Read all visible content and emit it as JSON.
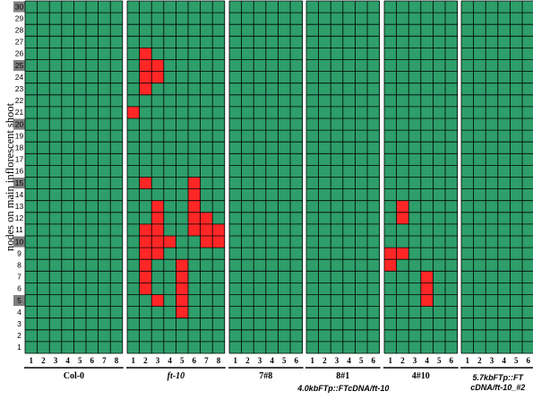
{
  "chart_data": {
    "type": "heatmap",
    "ylabel": "nodes on main inflorescent shoot",
    "rows": 30,
    "highlighted_rows": [
      5,
      10,
      15,
      20,
      25,
      30
    ],
    "colors": {
      "background": "#2e9e6a",
      "flower": "#ff2626",
      "grid": "#000000",
      "highlight": "#808080"
    },
    "panels": [
      {
        "label": "Col-0",
        "italic": false,
        "columns": [
          1,
          2,
          3,
          4,
          5,
          6,
          7,
          8
        ],
        "red": []
      },
      {
        "label": "ft-10",
        "italic": true,
        "columns": [
          1,
          2,
          3,
          4,
          5,
          6,
          7,
          8
        ],
        "red": [
          [
            1,
            21
          ],
          [
            2,
            26
          ],
          [
            2,
            25
          ],
          [
            2,
            24
          ],
          [
            2,
            23
          ],
          [
            2,
            15
          ],
          [
            2,
            11
          ],
          [
            2,
            10
          ],
          [
            2,
            9
          ],
          [
            2,
            8
          ],
          [
            2,
            7
          ],
          [
            2,
            6
          ],
          [
            3,
            25
          ],
          [
            3,
            24
          ],
          [
            3,
            13
          ],
          [
            3,
            12
          ],
          [
            3,
            11
          ],
          [
            3,
            10
          ],
          [
            3,
            9
          ],
          [
            3,
            5
          ],
          [
            4,
            10
          ],
          [
            5,
            8
          ],
          [
            5,
            7
          ],
          [
            5,
            6
          ],
          [
            5,
            5
          ],
          [
            5,
            4
          ],
          [
            6,
            15
          ],
          [
            6,
            14
          ],
          [
            6,
            13
          ],
          [
            6,
            12
          ],
          [
            6,
            11
          ],
          [
            7,
            12
          ],
          [
            7,
            11
          ],
          [
            7,
            10
          ],
          [
            8,
            11
          ],
          [
            8,
            10
          ]
        ]
      },
      {
        "label": "7#8",
        "italic": false,
        "columns": [
          1,
          2,
          3,
          4,
          5,
          6
        ],
        "red": []
      },
      {
        "label": "8#1",
        "italic": false,
        "columns": [
          1,
          2,
          3,
          4,
          5,
          6
        ],
        "red": []
      },
      {
        "label": "4#10",
        "italic": false,
        "columns": [
          1,
          2,
          3,
          4,
          5,
          6
        ],
        "red": [
          [
            1,
            9
          ],
          [
            1,
            8
          ],
          [
            2,
            13
          ],
          [
            2,
            12
          ],
          [
            2,
            9
          ],
          [
            4,
            7
          ],
          [
            4,
            6
          ],
          [
            4,
            5
          ]
        ]
      },
      {
        "label": "",
        "italic": false,
        "columns": [
          1,
          2,
          3,
          4,
          5,
          6
        ],
        "red": []
      }
    ],
    "super_labels": [
      {
        "text": "4.0kbFTp::FTcDNA/ft-10",
        "spans": [
          2,
          4
        ]
      },
      {
        "text": "5.7kbFTp::FT cDNA/ft-10_#2",
        "spans": [
          5,
          5
        ]
      }
    ]
  }
}
